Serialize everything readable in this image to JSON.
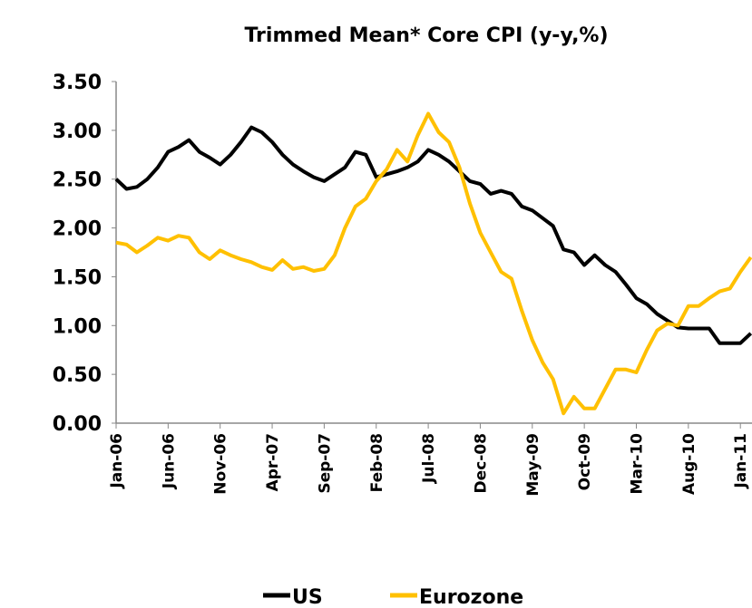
{
  "chart_data": {
    "type": "line",
    "title": "Trimmed  Mean* Core CPI (y-y,%)",
    "categories": [
      "Jan-06",
      null,
      null,
      null,
      null,
      "Jun-06",
      null,
      null,
      null,
      null,
      "Nov-06",
      null,
      null,
      null,
      null,
      "Apr-07",
      null,
      null,
      null,
      null,
      "Sep-07",
      null,
      null,
      null,
      null,
      "Feb-08",
      null,
      null,
      null,
      null,
      "Jul-08",
      null,
      null,
      null,
      null,
      "Dec-08",
      null,
      null,
      null,
      null,
      "May-09",
      null,
      null,
      null,
      null,
      "Oct-09",
      null,
      null,
      null,
      null,
      "Mar-10",
      null,
      null,
      null,
      null,
      "Aug-10",
      null,
      null,
      null,
      null,
      "Jan-11",
      null
    ],
    "series": [
      {
        "name": "US",
        "color": "#000000",
        "values": [
          2.5,
          2.4,
          2.42,
          2.5,
          2.62,
          2.78,
          2.83,
          2.9,
          2.78,
          2.72,
          2.65,
          2.75,
          2.88,
          3.03,
          2.98,
          2.88,
          2.75,
          2.65,
          2.58,
          2.52,
          2.48,
          2.55,
          2.62,
          2.78,
          2.75,
          2.52,
          2.55,
          2.58,
          2.62,
          2.68,
          2.8,
          2.75,
          2.68,
          2.58,
          2.48,
          2.45,
          2.35,
          2.38,
          2.35,
          2.22,
          2.18,
          2.1,
          2.02,
          1.78,
          1.75,
          1.62,
          1.72,
          1.62,
          1.55,
          1.42,
          1.28,
          1.22,
          1.12,
          1.05,
          0.98,
          0.97,
          0.97,
          0.97,
          0.82,
          0.82,
          0.82,
          0.92
        ]
      },
      {
        "name": "Eurozone",
        "color": "#ffc000",
        "values": [
          1.85,
          1.83,
          1.75,
          1.82,
          1.9,
          1.87,
          1.92,
          1.9,
          1.75,
          1.68,
          1.77,
          1.72,
          1.68,
          1.65,
          1.6,
          1.57,
          1.67,
          1.58,
          1.6,
          1.56,
          1.58,
          1.72,
          2.0,
          2.22,
          2.3,
          2.48,
          2.6,
          2.8,
          2.68,
          2.95,
          3.17,
          2.98,
          2.88,
          2.62,
          2.25,
          1.95,
          1.75,
          1.55,
          1.48,
          1.15,
          0.85,
          0.62,
          0.45,
          0.1,
          0.27,
          0.15,
          0.15,
          0.35,
          0.55,
          0.55,
          0.52,
          0.75,
          0.95,
          1.02,
          1.0,
          1.2,
          1.2,
          1.28,
          1.35,
          1.38,
          1.55,
          1.7
        ]
      }
    ],
    "ylim": [
      0,
      3.5
    ],
    "yticks": [
      {
        "value": 0,
        "label": "0.00"
      },
      {
        "value": 0.5,
        "label": "0.50"
      },
      {
        "value": 1,
        "label": "1.00"
      },
      {
        "value": 1.5,
        "label": "1.50"
      },
      {
        "value": 2,
        "label": "2.00"
      },
      {
        "value": 2.5,
        "label": "2.50"
      },
      {
        "value": 3,
        "label": "3.00"
      },
      {
        "value": 3.5,
        "label": "3.50"
      }
    ],
    "legend": "bottom"
  }
}
